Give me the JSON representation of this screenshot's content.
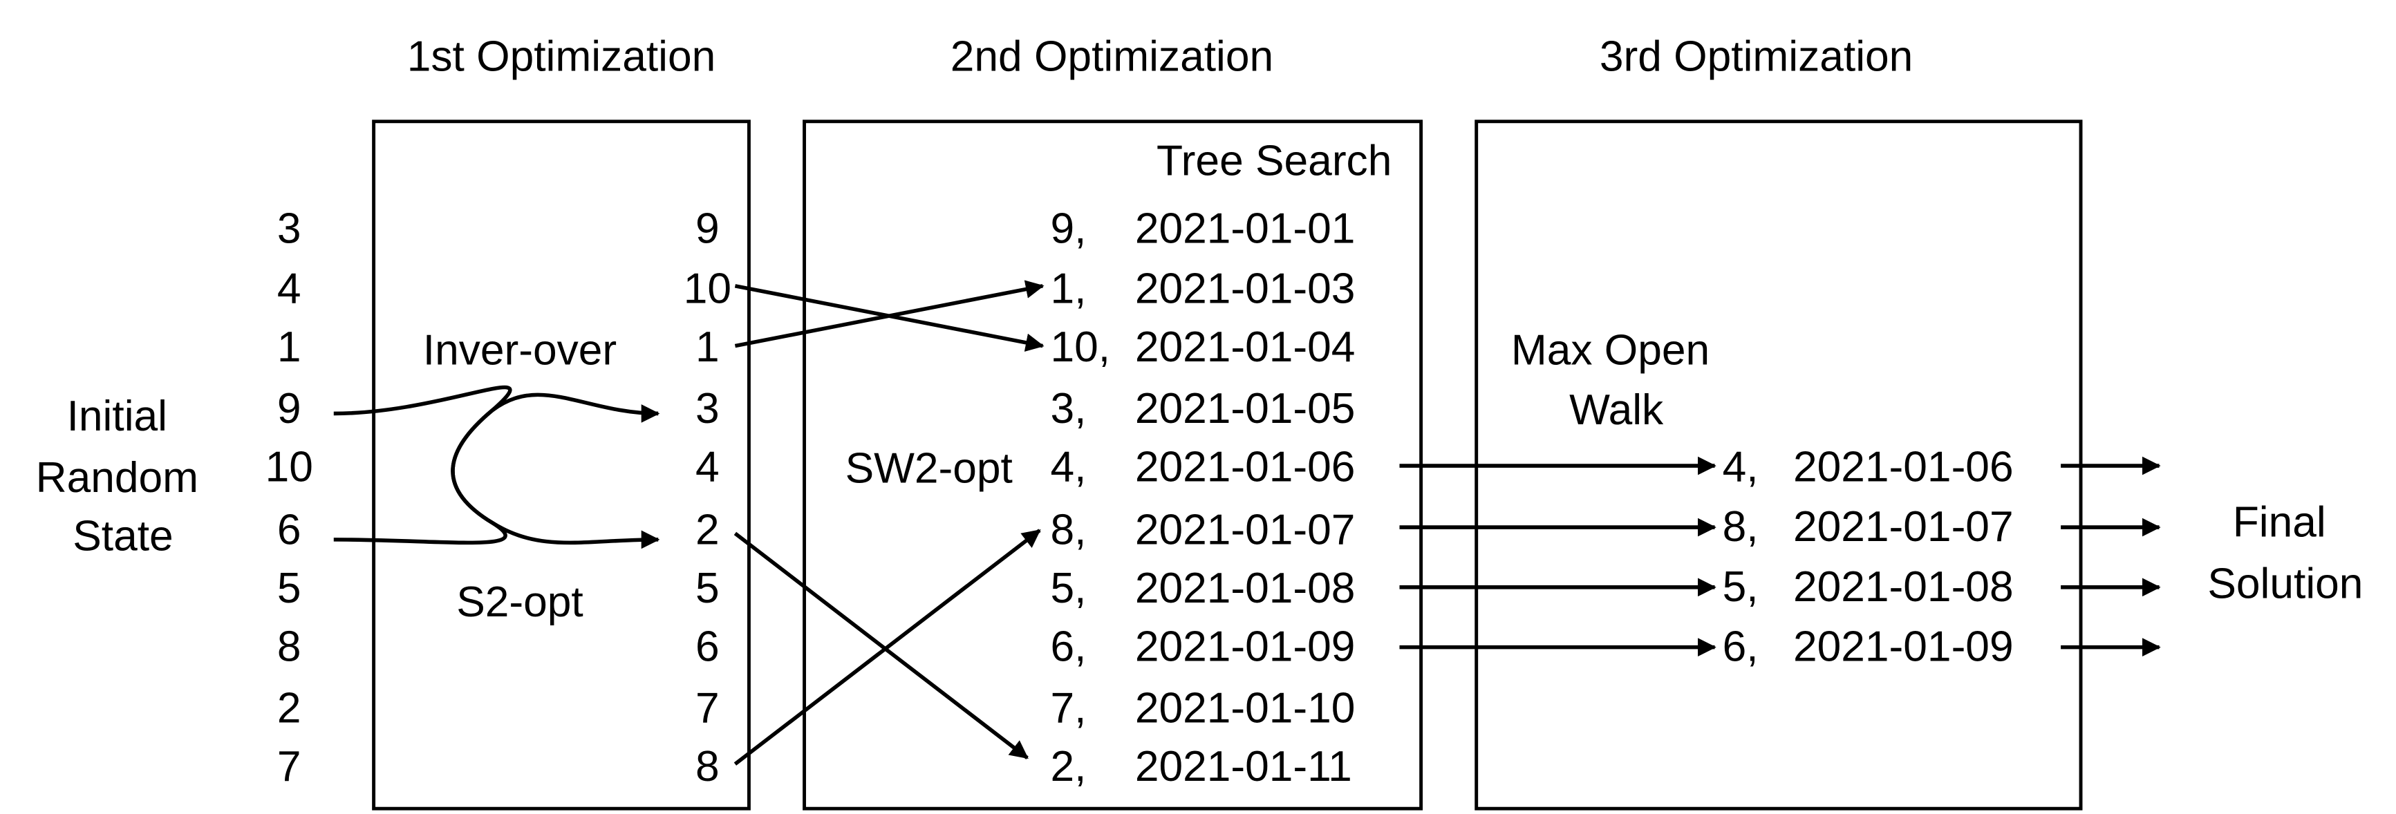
{
  "titles": {
    "stage1": "1st Optimization",
    "stage2": "2nd Optimization",
    "stage3": "3rd Optimization"
  },
  "labels": {
    "initial_line1": "Initial",
    "initial_line2": "Random",
    "initial_line3": "State",
    "inver_over": "Inver-over",
    "s2_opt": "S2-opt",
    "tree_search": "Tree Search",
    "sw2_opt": "SW2-opt",
    "max_open_walk_line1": "Max Open",
    "max_open_walk_line2": "Walk",
    "final_line1": "Final",
    "final_line2": "Solution"
  },
  "colors": {
    "c1": "#c8c000",
    "c2": "#9a2ee6",
    "c3": "#ef3b3b",
    "c4": "#f5952e",
    "c5": "#2e95e8",
    "c6": "#2ee891",
    "c7": "#f02ee8",
    "c8": "#2e2ee8",
    "c9": "#95ee2e",
    "c10": "#2ee82e"
  },
  "initial_sequence": [
    "3",
    "4",
    "1",
    "9",
    "10",
    "6",
    "5",
    "8",
    "2",
    "7"
  ],
  "stage1_sequence": [
    "9",
    "10",
    "1",
    "3",
    "4",
    "2",
    "5",
    "6",
    "7",
    "8"
  ],
  "stage2_rows": [
    {
      "id": "9,",
      "date": "2021-01-01"
    },
    {
      "id": "1,",
      "date": "2021-01-03"
    },
    {
      "id": "10,",
      "date": "2021-01-04"
    },
    {
      "id": "3,",
      "date": "2021-01-05"
    },
    {
      "id": "4,",
      "date": "2021-01-06"
    },
    {
      "id": "8,",
      "date": "2021-01-07"
    },
    {
      "id": "5,",
      "date": "2021-01-08"
    },
    {
      "id": "6,",
      "date": "2021-01-09"
    },
    {
      "id": "7,",
      "date": "2021-01-10"
    },
    {
      "id": "2,",
      "date": "2021-01-11"
    }
  ],
  "stage3_rows": [
    {
      "id": "4,",
      "date": "2021-01-06"
    },
    {
      "id": "8,",
      "date": "2021-01-07"
    },
    {
      "id": "5,",
      "date": "2021-01-08"
    },
    {
      "id": "6,",
      "date": "2021-01-09"
    }
  ]
}
